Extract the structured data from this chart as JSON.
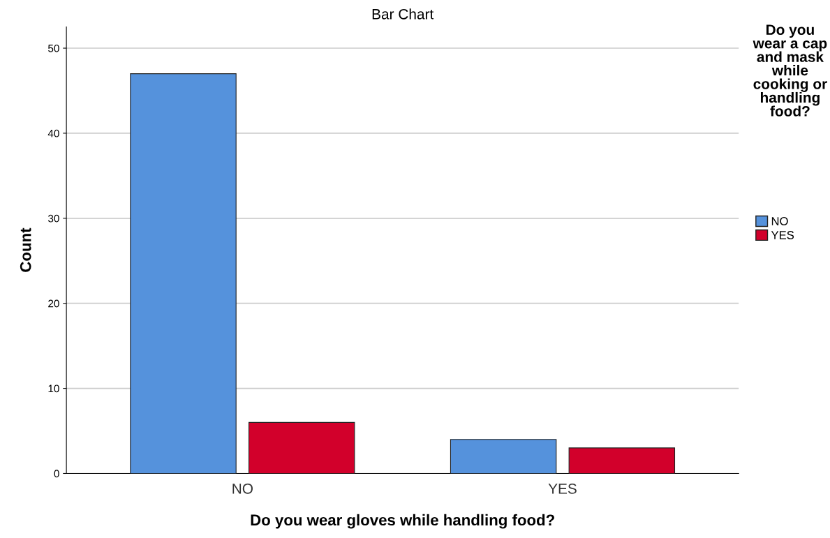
{
  "chart_data": {
    "type": "bar",
    "title": "Bar Chart",
    "xlabel": "Do you wear gloves while handling food?",
    "ylabel": "Count",
    "legend_title": "Do you wear a cap and mask while cooking or handling food?",
    "categories": [
      "NO",
      "YES"
    ],
    "series": [
      {
        "name": "NO",
        "color": "#5592dc",
        "values": [
          47,
          4
        ]
      },
      {
        "name": "YES",
        "color": "#d2002b",
        "values": [
          6,
          3
        ]
      }
    ],
    "ylim": [
      0,
      52.5
    ],
    "yticks": [
      0,
      10,
      20,
      30,
      40,
      50
    ],
    "grid": "y",
    "legend": "right"
  }
}
